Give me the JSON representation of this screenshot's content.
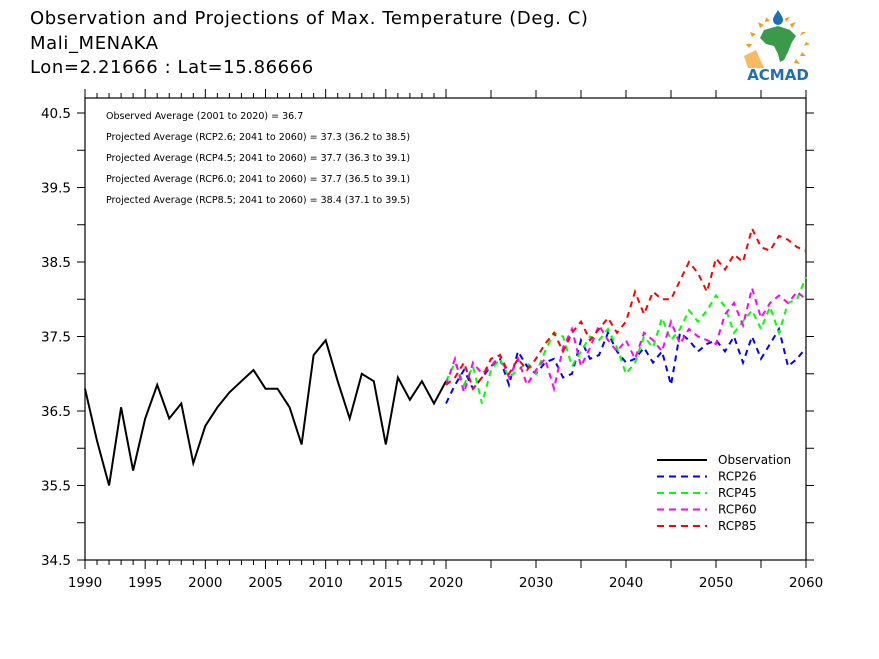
{
  "header": {
    "title": "Observation and Projections of Max. Temperature (Deg. C)",
    "location": "Mali_MENAKA",
    "coords": "Lon=2.21666 : Lat=15.86666"
  },
  "logo": {
    "text": "ACMAD",
    "icon": "africa-map-sun-icon",
    "colors": {
      "text": "#1e6fb5",
      "map": "#3a9a4a",
      "rays": "#f39c1f",
      "drop": "#1e6fb5"
    }
  },
  "chart_data": {
    "type": "line",
    "title": "Observation and Projections of Max. Temperature (Deg. C)",
    "xlabel": "",
    "ylabel": "",
    "ylim": [
      34.5,
      40.5
    ],
    "yticks": [
      "40.5",
      "39.5",
      "38.5",
      "37.5",
      "36.5",
      "35.5",
      "34.5"
    ],
    "xticks": [
      "1990",
      "1995",
      "2000",
      "2005",
      "2010",
      "2015",
      "2020",
      "2030",
      "2040",
      "2050",
      "2060"
    ],
    "xlim": [
      1990,
      2060
    ],
    "grid": false,
    "legend_position": "bottom-right",
    "annotations": [
      "Observed Average (2001 to 2020) = 36.7",
      "Projected Average (RCP2.6; 2041 to 2060) = 37.3 (36.2 to 38.5)",
      "Projected Average (RCP4.5; 2041 to 2060) = 37.7 (36.3 to 39.1)",
      "Projected Average (RCP6.0; 2041 to 2060) = 37.7 (36.5 to 39.1)",
      "Projected Average (RCP8.5; 2041 to 2060) = 38.4 (37.1 to 39.5)"
    ],
    "series": [
      {
        "name": "Observation",
        "color": "#000000",
        "style": "solid",
        "x": [
          1990,
          1991,
          1992,
          1993,
          1994,
          1995,
          1996,
          1997,
          1998,
          1999,
          2000,
          2001,
          2002,
          2003,
          2004,
          2005,
          2006,
          2007,
          2008,
          2009,
          2010,
          2011,
          2012,
          2013,
          2014,
          2015,
          2016,
          2017,
          2018,
          2019,
          2020
        ],
        "values": [
          36.8,
          36.1,
          35.5,
          36.55,
          35.7,
          36.4,
          36.85,
          36.4,
          36.6,
          35.8,
          36.3,
          36.55,
          36.75,
          36.9,
          37.05,
          36.8,
          36.8,
          36.55,
          36.05,
          37.25,
          37.45,
          36.9,
          36.4,
          37.0,
          36.9,
          36.05,
          36.95,
          36.65,
          36.9,
          36.6,
          36.9
        ]
      },
      {
        "name": "RCP26",
        "color": "#0000ff",
        "style": "dashed",
        "x": [
          2020,
          2021,
          2022,
          2023,
          2024,
          2025,
          2026,
          2027,
          2028,
          2029,
          2030,
          2031,
          2032,
          2033,
          2034,
          2035,
          2036,
          2037,
          2038,
          2039,
          2040,
          2041,
          2042,
          2043,
          2044,
          2045,
          2046,
          2047,
          2048,
          2049,
          2050,
          2051,
          2052,
          2053,
          2054,
          2055,
          2056,
          2057,
          2058,
          2059,
          2060
        ],
        "values": [
          36.6,
          36.85,
          37.05,
          36.8,
          36.95,
          37.1,
          37.2,
          36.85,
          37.3,
          37.1,
          37.0,
          37.15,
          37.2,
          36.95,
          37.0,
          37.45,
          37.2,
          37.25,
          37.55,
          37.3,
          37.15,
          37.2,
          37.35,
          37.15,
          37.3,
          36.85,
          37.55,
          37.45,
          37.3,
          37.4,
          37.45,
          37.3,
          37.5,
          37.15,
          37.5,
          37.2,
          37.4,
          37.6,
          37.1,
          37.2,
          37.35
        ]
      },
      {
        "name": "RCP45",
        "color": "#00ff00",
        "style": "dashed",
        "x": [
          2020,
          2021,
          2022,
          2023,
          2024,
          2025,
          2026,
          2027,
          2028,
          2029,
          2030,
          2031,
          2032,
          2033,
          2034,
          2035,
          2036,
          2037,
          2038,
          2039,
          2040,
          2041,
          2042,
          2043,
          2044,
          2045,
          2046,
          2047,
          2048,
          2049,
          2050,
          2051,
          2052,
          2053,
          2054,
          2055,
          2056,
          2057,
          2058,
          2059,
          2060
        ],
        "values": [
          36.9,
          37.15,
          36.85,
          37.1,
          36.6,
          37.05,
          37.2,
          36.95,
          37.05,
          37.15,
          37.0,
          37.3,
          37.55,
          37.5,
          37.1,
          37.3,
          37.5,
          37.45,
          37.6,
          37.35,
          37.0,
          37.15,
          37.5,
          37.35,
          37.75,
          37.45,
          37.6,
          37.85,
          37.7,
          37.85,
          38.05,
          37.9,
          37.55,
          37.7,
          37.85,
          37.6,
          37.9,
          37.55,
          37.95,
          38.0,
          38.3
        ]
      },
      {
        "name": "RCP60",
        "color": "#ff00ff",
        "style": "dashed",
        "x": [
          2020,
          2021,
          2022,
          2023,
          2024,
          2025,
          2026,
          2027,
          2028,
          2029,
          2030,
          2031,
          2032,
          2033,
          2034,
          2035,
          2036,
          2037,
          2038,
          2039,
          2040,
          2041,
          2042,
          2043,
          2044,
          2045,
          2046,
          2047,
          2048,
          2049,
          2050,
          2051,
          2052,
          2053,
          2054,
          2055,
          2056,
          2057,
          2058,
          2059,
          2060
        ],
        "values": [
          36.85,
          37.2,
          36.75,
          37.15,
          37.0,
          37.1,
          37.25,
          36.95,
          37.2,
          36.85,
          37.05,
          37.2,
          36.8,
          37.35,
          37.6,
          37.1,
          37.35,
          37.65,
          37.45,
          37.3,
          37.45,
          37.2,
          37.55,
          37.45,
          37.3,
          37.7,
          37.4,
          37.6,
          37.5,
          37.45,
          37.4,
          37.8,
          37.95,
          37.65,
          38.15,
          37.75,
          37.95,
          38.05,
          37.95,
          38.1,
          38.0
        ]
      },
      {
        "name": "RCP85",
        "color": "#ff0000",
        "style": "dashed",
        "x": [
          2020,
          2021,
          2022,
          2023,
          2024,
          2025,
          2026,
          2027,
          2028,
          2029,
          2030,
          2031,
          2032,
          2033,
          2034,
          2035,
          2036,
          2037,
          2038,
          2039,
          2040,
          2041,
          2042,
          2043,
          2044,
          2045,
          2046,
          2047,
          2048,
          2049,
          2050,
          2051,
          2052,
          2053,
          2054,
          2055,
          2056,
          2057,
          2058,
          2059,
          2060
        ],
        "values": [
          36.85,
          36.95,
          37.15,
          36.8,
          36.95,
          37.2,
          37.25,
          37.0,
          37.2,
          37.05,
          37.2,
          37.4,
          37.55,
          37.3,
          37.55,
          37.7,
          37.45,
          37.6,
          37.75,
          37.55,
          37.7,
          38.1,
          37.8,
          38.1,
          38.0,
          38.0,
          38.25,
          38.5,
          38.35,
          38.1,
          38.55,
          38.4,
          38.6,
          38.5,
          38.95,
          38.7,
          38.65,
          38.85,
          38.8,
          38.7,
          38.65
        ]
      }
    ]
  }
}
